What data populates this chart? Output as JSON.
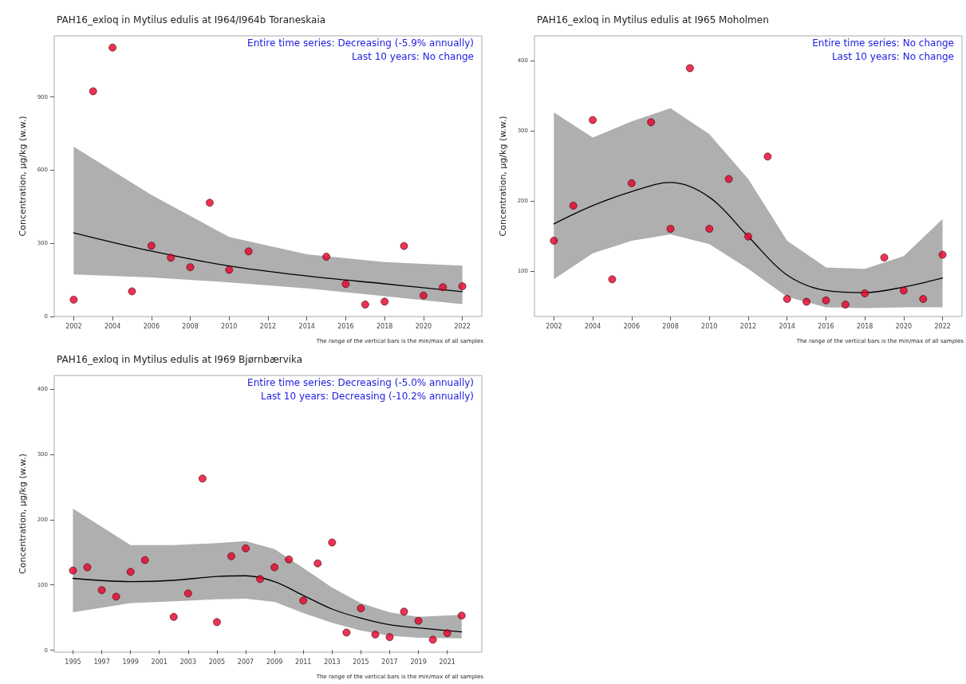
{
  "chart_data": [
    {
      "type": "scatter",
      "title": "PAH16_exloq in Mytilus edulis at I964/I964b Toraneskaia",
      "ylabel": "Concentration, µg/kg (w.w.)",
      "annotations": [
        "Entire time series: Decreasing (-5.9% annually)",
        "Last 10 years: No change",
        "The range of the vertical bars is the min/max of all samples"
      ],
      "x": [
        2002,
        2003,
        2004,
        2005,
        2006,
        2007,
        2008,
        2009,
        2010,
        2011,
        2015,
        2016,
        2017,
        2018,
        2019,
        2020,
        2021,
        2022
      ],
      "marker": "circle",
      "grid": false,
      "xlim": [
        2001,
        2023
      ],
      "xticks": [
        2002,
        2004,
        2006,
        2008,
        2010,
        2012,
        2014,
        2016,
        2018,
        2020,
        2022
      ],
      "ylim": [
        0,
        1150
      ],
      "yticks": [
        0,
        300,
        600,
        900
      ],
      "series": [
        {
          "color": "#e8002a",
          "values": [
            69,
            923,
            1102,
            103,
            290,
            241,
            202,
            466,
            191,
            267,
            245,
            133,
            49,
            61,
            289,
            86,
            120,
            124
          ]
        },
        {
          "type": "line",
          "marker": "none",
          "color": "#000000",
          "x": [
            2002,
            2006,
            2010,
            2014,
            2018,
            2022
          ],
          "values": [
            343,
            268,
            207,
            166,
            134,
            102
          ],
          "lower": [
            172,
            160,
            140,
            115,
            83,
            51
          ],
          "upper": [
            696,
            498,
            326,
            255,
            223,
            208
          ]
        }
      ]
    },
    {
      "type": "scatter",
      "title": "PAH16_exloq in Mytilus edulis at I965 Moholmen",
      "ylabel": "Concentration, µg/kg (w.w.)",
      "annotations": [
        "Entire time series: No change",
        "Last 10 years: No change",
        "The range of the vertical bars is the min/max of all samples"
      ],
      "x": [
        2002,
        2003,
        2004,
        2005,
        2006,
        2007,
        2008,
        2009,
        2010,
        2011,
        2012,
        2013,
        2014,
        2015,
        2016,
        2017,
        2018,
        2019,
        2020,
        2021,
        2022
      ],
      "marker": "circle",
      "grid": false,
      "xlim": [
        2001,
        2023
      ],
      "xticks": [
        2002,
        2004,
        2006,
        2008,
        2010,
        2012,
        2014,
        2016,
        2018,
        2020,
        2022
      ],
      "ylim": [
        35,
        435
      ],
      "yticks": [
        100,
        200,
        300,
        400
      ],
      "series": [
        {
          "color": "#e8002a",
          "values": [
            143,
            193,
            315,
            88,
            225,
            312,
            160,
            389,
            160,
            231,
            149,
            263,
            60,
            56,
            58,
            52,
            68,
            119,
            72,
            60,
            123
          ]
        },
        {
          "type": "line",
          "marker": "none",
          "color": "#000000",
          "x": [
            2002,
            2004,
            2006,
            2008,
            2010,
            2012,
            2014,
            2016,
            2018,
            2020,
            2022
          ],
          "values": [
            167,
            193,
            213,
            226,
            205,
            149,
            94,
            72,
            69,
            77,
            90
          ],
          "lower": [
            88,
            125,
            143,
            152,
            138,
            103,
            63,
            48,
            47,
            48,
            48
          ],
          "upper": [
            326,
            290,
            313,
            332,
            295,
            231,
            143,
            105,
            103,
            121,
            174
          ]
        }
      ]
    },
    {
      "type": "scatter",
      "title": "PAH16_exloq in Mytilus edulis at I969 Bjørnbærvika",
      "ylabel": "Concentration, µg/kg (w.w.)",
      "annotations": [
        "Entire time series: Decreasing (-5.0% annually)",
        "Last 10 years: Decreasing (-10.2% annually)",
        "The range of the vertical bars is the min/max of all samples"
      ],
      "x": [
        1995,
        1996,
        1997,
        1998,
        1999,
        2000,
        2002,
        2003,
        2004,
        2005,
        2006,
        2007,
        2008,
        2009,
        2010,
        2011,
        2012,
        2013,
        2014,
        2015,
        2016,
        2017,
        2018,
        2019,
        2020,
        2021,
        2022
      ],
      "marker": "circle",
      "grid": false,
      "xlim": [
        1993.7,
        2023.4
      ],
      "xticks": [
        1995,
        1997,
        1999,
        2001,
        2003,
        2005,
        2007,
        2009,
        2011,
        2013,
        2015,
        2017,
        2019,
        2021
      ],
      "ylim": [
        -3,
        421
      ],
      "yticks": [
        0,
        100,
        200,
        300,
        400
      ],
      "series": [
        {
          "color": "#e8002a",
          "values": [
            122,
            127,
            92,
            82,
            120,
            138,
            51,
            87,
            263,
            43,
            144,
            156,
            109,
            127,
            139,
            76,
            133,
            165,
            27,
            64,
            24,
            20,
            59,
            45,
            16,
            26,
            53
          ]
        },
        {
          "type": "line",
          "marker": "none",
          "color": "#000000",
          "x": [
            1995,
            1999,
            2002,
            2005,
            2007,
            2009,
            2011,
            2013,
            2015,
            2017,
            2019,
            2022
          ],
          "values": [
            110,
            105,
            107,
            113,
            114,
            105,
            84,
            63,
            49,
            39,
            34,
            28
          ],
          "lower": [
            58,
            72,
            75,
            78,
            79,
            74,
            57,
            42,
            30,
            22,
            19,
            18
          ],
          "upper": [
            217,
            161,
            161,
            164,
            167,
            155,
            126,
            96,
            72,
            58,
            51,
            54
          ]
        }
      ]
    }
  ]
}
